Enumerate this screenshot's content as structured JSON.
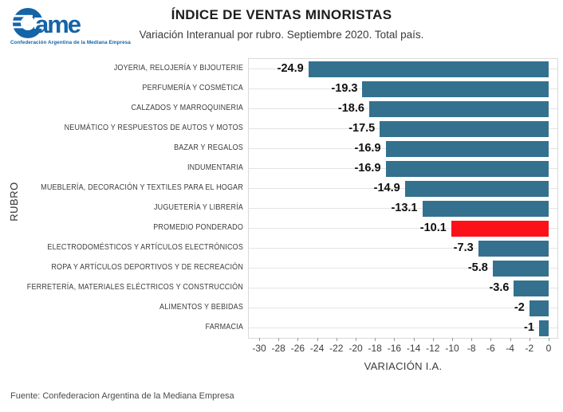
{
  "header": {
    "logo": {
      "text": "ame",
      "tagline": "Confederación Argentina de la Mediana Empresa",
      "brand_color": "#1464A8"
    },
    "title": "ÍNDICE DE VENTAS MINORISTAS",
    "subtitle": "Variación Interanual por rubro. Septiembre 2020. Total país."
  },
  "chart_data": {
    "type": "bar",
    "orientation": "horizontal",
    "title": "ÍNDICE DE VENTAS MINORISTAS",
    "subtitle": "Variación Interanual por rubro. Septiembre 2020. Total país.",
    "xlabel": "VARIACIÓN I.A.",
    "ylabel": "RUBRO",
    "xlim": [
      -31,
      0.9
    ],
    "x_ticks": [
      -30,
      -28,
      -26,
      -24,
      -22,
      -20,
      -18,
      -16,
      -14,
      -12,
      -10,
      -8,
      -6,
      -4,
      -2,
      0
    ],
    "grid": "horizontal",
    "legend": "none",
    "categories": [
      "JOYERIA, RELOJERÍA Y BIJOUTERIE",
      "PERFUMERÍA Y COSMÉTICA",
      "CALZADOS Y MARROQUINERIA",
      "NEUMÁTICO Y RESPUESTOS DE AUTOS Y MOTOS",
      "BAZAR Y REGALOS",
      "INDUMENTARIA",
      "MUEBLERÍA, DECORACIÓN Y TEXTILES PARA EL HOGAR",
      "JUGUETERÍA Y LIBRERÍA",
      "PROMEDIO PONDERADO",
      "ELECTRODOMÉSTICOS Y ARTÍCULOS ELECTRÓNICOS",
      "ROPA Y ARTÍCULOS DEPORTIVOS Y DE RECREACIÓN",
      "FERRETERÍA, MATERIALES ELÉCTRICOS Y CONSTRUCCIÓN",
      "ALIMENTOS Y BEBIDAS",
      "FARMACIA"
    ],
    "values": [
      -24.9,
      -19.3,
      -18.6,
      -17.5,
      -16.9,
      -16.9,
      -14.9,
      -13.1,
      -10.1,
      -7.3,
      -5.8,
      -3.6,
      -2,
      -1
    ],
    "value_labels": [
      "-24.9",
      "-19.3",
      "-18.6",
      "-17.5",
      "-16.9",
      "-16.9",
      "-14.9",
      "-13.1",
      "-10.1",
      "-7.3",
      "-5.8",
      "-3.6",
      "-2",
      "-1"
    ],
    "bar_color": "#33718F",
    "highlight_index": 8,
    "highlight_category": "PROMEDIO PONDERADO",
    "highlight_color": "#FB1219"
  },
  "footer": {
    "source": "Fuente: Confederacion Argentina de la Mediana Empresa"
  }
}
